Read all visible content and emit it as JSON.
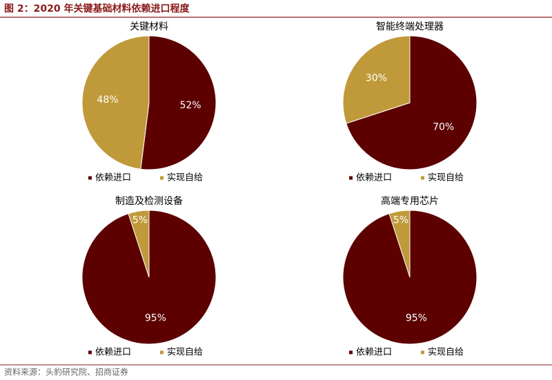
{
  "title": "图 2：2020 年关键基础材料依赖进口程度",
  "source": "资料来源：头豹研究院、招商证券",
  "chart_data": [
    {
      "type": "pie",
      "title": "关键材料",
      "categories": [
        "依赖进口",
        "实现自给"
      ],
      "values": [
        52,
        48
      ],
      "value_labels": [
        "52%",
        "48%"
      ],
      "colors": [
        "#5c0000",
        "#c09a3a"
      ]
    },
    {
      "type": "pie",
      "title": "智能终端处理器",
      "categories": [
        "依赖进口",
        "实现自给"
      ],
      "values": [
        70,
        30
      ],
      "value_labels": [
        "70%",
        "30%"
      ],
      "colors": [
        "#5c0000",
        "#c09a3a"
      ]
    },
    {
      "type": "pie",
      "title": "制造及检测设备",
      "categories": [
        "依赖进口",
        "实现自给"
      ],
      "values": [
        95,
        5
      ],
      "value_labels": [
        "95%",
        "5%"
      ],
      "colors": [
        "#5c0000",
        "#c09a3a"
      ]
    },
    {
      "type": "pie",
      "title": "高端专用芯片",
      "categories": [
        "依赖进口",
        "实现自给"
      ],
      "values": [
        95,
        5
      ],
      "value_labels": [
        "95%",
        "5%"
      ],
      "colors": [
        "#5c0000",
        "#c09a3a"
      ]
    }
  ]
}
